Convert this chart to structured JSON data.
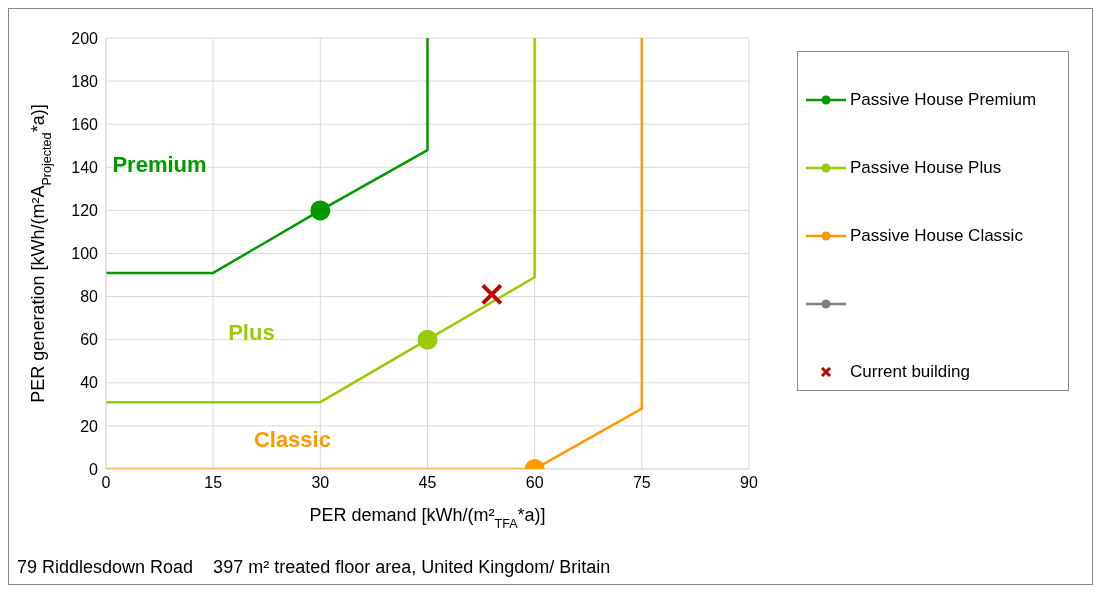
{
  "chart_data": {
    "type": "line",
    "xlabel": "PER demand [kWh/(m²$_{TFA}$*a)]",
    "ylabel": "PER generation [kWh/(m²A$_{Projected}$*a)]",
    "xlim": [
      0,
      90
    ],
    "xticks": [
      0,
      15,
      30,
      45,
      60,
      75,
      90
    ],
    "ylim": [
      0,
      200
    ],
    "yticks": [
      0,
      20,
      40,
      60,
      80,
      100,
      120,
      140,
      160,
      180,
      200
    ],
    "grid": true,
    "legend": "right",
    "series": [
      {
        "name": "Passive House Premium",
        "type": "line",
        "color": "#009900",
        "x": [
          0,
          15,
          30,
          45,
          45
        ],
        "values": [
          91,
          91,
          120,
          148,
          200
        ]
      },
      {
        "name": "Passive House Plus",
        "type": "line",
        "color": "#99cc00",
        "x": [
          0,
          30,
          45,
          60,
          60
        ],
        "values": [
          31,
          31,
          60,
          89,
          200
        ]
      },
      {
        "name": "Passive House Classic",
        "type": "line",
        "color": "#ff9900",
        "x": [
          0,
          60,
          75,
          75
        ],
        "values": [
          0,
          0,
          28,
          200
        ]
      },
      {
        "type": "line",
        "color": "#7f7f7f"
      },
      {
        "type": "scatter",
        "marker": "circle",
        "color": "#009900",
        "x": [
          30
        ],
        "values": [
          120
        ]
      },
      {
        "type": "scatter",
        "marker": "circle",
        "color": "#99cc00",
        "x": [
          45
        ],
        "values": [
          60
        ]
      },
      {
        "type": "scatter",
        "marker": "circle",
        "color": "#ff9900",
        "x": [
          60
        ],
        "values": [
          0
        ]
      },
      {
        "name": "Current building",
        "type": "scatter",
        "marker": "cross",
        "color": "#c00000",
        "x": [
          54
        ],
        "values": [
          81
        ]
      }
    ],
    "annotations": [
      "Premium",
      "Plus",
      "Classic",
      "79 Riddlesdown Road    397 m² treated floor area, United Kingdom/ Britain"
    ]
  }
}
